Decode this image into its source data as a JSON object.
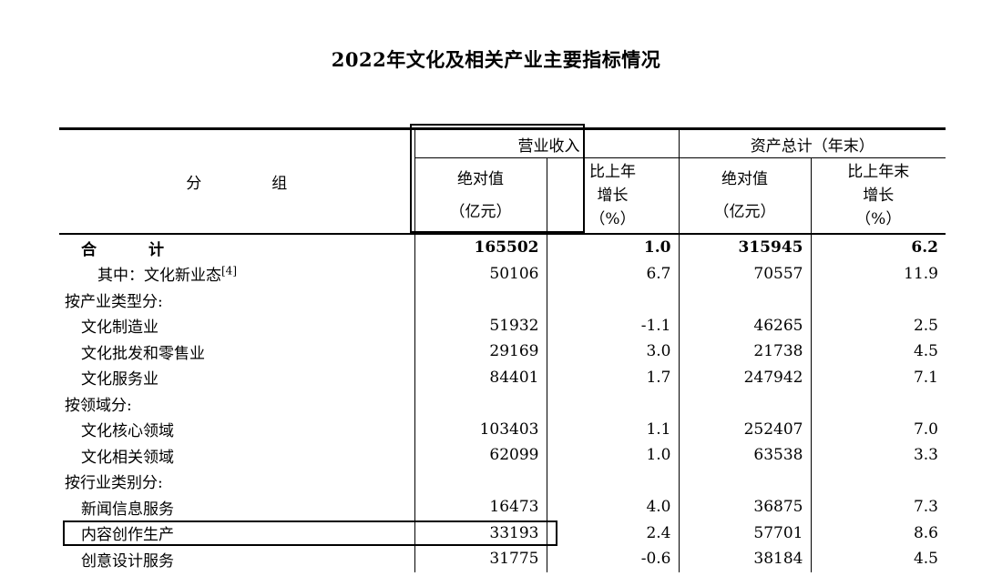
{
  "title": "2022年文化及相关产业主要指标情况",
  "headers": {
    "group": "分　组",
    "revenue": "营业收入",
    "assets": "资产总计（年末）",
    "abs_value": "绝对值",
    "unit_yi": "（亿元）",
    "growth_line1": "比上年",
    "growth_line2": "增长",
    "growth_line1_end": "比上年末",
    "percent": "（%）"
  },
  "rows": [
    {
      "label": "合　计",
      "rev": "165502",
      "rev_g": "1.0",
      "asset": "315945",
      "asset_g": "6.2",
      "style": "total"
    },
    {
      "label": "其中：文化新业态",
      "sup": "[4]",
      "rev": "50106",
      "rev_g": "6.7",
      "asset": "70557",
      "asset_g": "11.9",
      "style": "ind1"
    },
    {
      "label": "按产业类型分:",
      "rev": "",
      "rev_g": "",
      "asset": "",
      "asset_g": "",
      "style": "ind0"
    },
    {
      "label": "文化制造业",
      "rev": "51932",
      "rev_g": "-1.1",
      "asset": "46265",
      "asset_g": "2.5",
      "style": "ind2"
    },
    {
      "label": "文化批发和零售业",
      "rev": "29169",
      "rev_g": "3.0",
      "asset": "21738",
      "asset_g": "4.5",
      "style": "ind2"
    },
    {
      "label": "文化服务业",
      "rev": "84401",
      "rev_g": "1.7",
      "asset": "247942",
      "asset_g": "7.1",
      "style": "ind2"
    },
    {
      "label": "按领域分:",
      "rev": "",
      "rev_g": "",
      "asset": "",
      "asset_g": "",
      "style": "ind0"
    },
    {
      "label": "文化核心领域",
      "rev": "103403",
      "rev_g": "1.1",
      "asset": "252407",
      "asset_g": "7.0",
      "style": "ind2"
    },
    {
      "label": "文化相关领域",
      "rev": "62099",
      "rev_g": "1.0",
      "asset": "63538",
      "asset_g": "3.3",
      "style": "ind2"
    },
    {
      "label": "按行业类别分:",
      "rev": "",
      "rev_g": "",
      "asset": "",
      "asset_g": "",
      "style": "ind0"
    },
    {
      "label": "新闻信息服务",
      "rev": "16473",
      "rev_g": "4.0",
      "asset": "36875",
      "asset_g": "7.3",
      "style": "ind2"
    },
    {
      "label": "内容创作生产",
      "rev": "33193",
      "rev_g": "2.4",
      "asset": "57701",
      "asset_g": "8.6",
      "style": "ind2"
    },
    {
      "label": "创意设计服务",
      "rev": "31775",
      "rev_g": "-0.6",
      "asset": "38184",
      "asset_g": "4.5",
      "style": "ind2"
    }
  ]
}
